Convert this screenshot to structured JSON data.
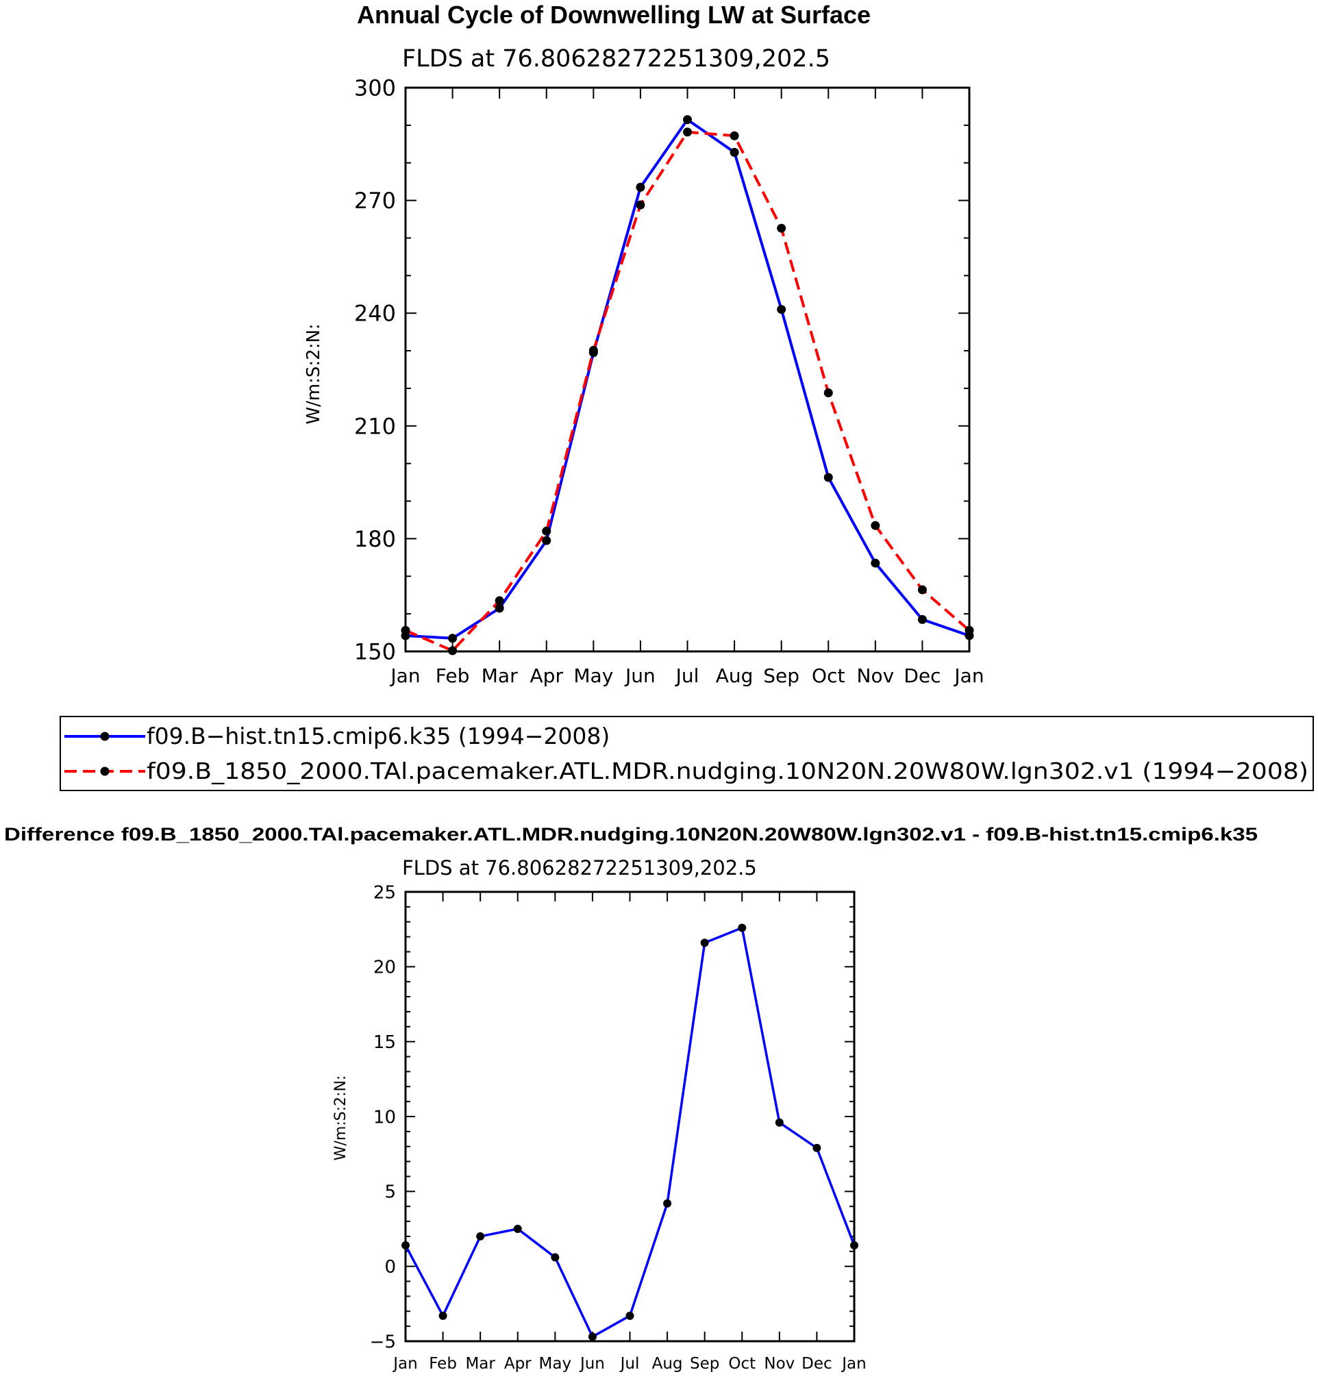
{
  "chart_data": [
    {
      "type": "line",
      "title": "Annual Cycle of Downwelling LW at Surface",
      "subtitle": "FLDS at 76.80628272251309,202.5",
      "ylabel": "W/m:S:2:N:",
      "xlabel": "",
      "categories": [
        "Jan",
        "Feb",
        "Mar",
        "Apr",
        "May",
        "Jun",
        "Jul",
        "Aug",
        "Sep",
        "Oct",
        "Nov",
        "Dec",
        "Jan"
      ],
      "yticks": [
        "150",
        "180",
        "210",
        "240",
        "270",
        "300"
      ],
      "ylim": [
        150,
        300
      ],
      "grid": false,
      "legend_position": "below",
      "series": [
        {
          "name": "f09.B−hist.tn15.cmip6.k35 (1994−2008)",
          "color": "#0000ff",
          "dash": "solid",
          "values": [
            154.2,
            153.5,
            161.5,
            179.5,
            229.5,
            273.5,
            291.5,
            282.8,
            241.0,
            196.3,
            173.5,
            158.5,
            154.2
          ]
        },
        {
          "name": "f09.B_1850_2000.TAl.pacemaker.ATL.MDR.nudging.10N20N.20W80W.lgn302.v1 (1994−2008)",
          "color": "#ff0000",
          "dash": "dashed",
          "values": [
            155.6,
            150.2,
            163.5,
            182.0,
            230.1,
            268.8,
            288.2,
            287.2,
            262.6,
            218.8,
            183.5,
            166.4,
            155.6
          ]
        }
      ]
    },
    {
      "type": "line",
      "title": "Difference f09.B_1850_2000.TAl.pacemaker.ATL.MDR.nudging.10N20N.20W80W.lgn302.v1 - f09.B-hist.tn15.cmip6.k35",
      "subtitle": "FLDS at 76.80628272251309,202.5",
      "ylabel": "W/m:S:2:N:",
      "xlabel": "",
      "categories": [
        "Jan",
        "Feb",
        "Mar",
        "Apr",
        "May",
        "Jun",
        "Jul",
        "Aug",
        "Sep",
        "Oct",
        "Nov",
        "Dec",
        "Jan"
      ],
      "yticks": [
        "−5",
        "0",
        "5",
        "10",
        "15",
        "20",
        "25"
      ],
      "ylim": [
        -5,
        25
      ],
      "grid": false,
      "series": [
        {
          "color": "#0000ff",
          "dash": "solid",
          "values": [
            1.4,
            -3.3,
            2.0,
            2.5,
            0.6,
            -4.7,
            -3.3,
            4.2,
            21.6,
            22.6,
            9.6,
            7.9,
            1.4
          ]
        }
      ]
    }
  ]
}
